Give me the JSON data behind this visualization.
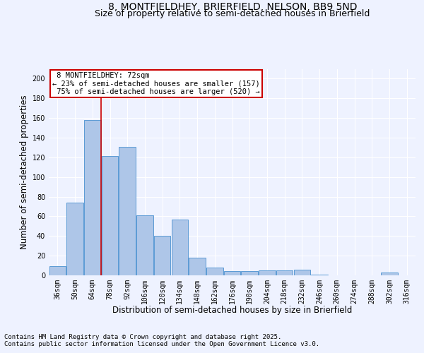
{
  "title_line1": "8, MONTFIELDHEY, BRIERFIELD, NELSON, BB9 5ND",
  "title_line2": "Size of property relative to semi-detached houses in Brierfield",
  "xlabel": "Distribution of semi-detached houses by size in Brierfield",
  "ylabel": "Number of semi-detached properties",
  "categories": [
    "36sqm",
    "50sqm",
    "64sqm",
    "78sqm",
    "92sqm",
    "106sqm",
    "120sqm",
    "134sqm",
    "148sqm",
    "162sqm",
    "176sqm",
    "190sqm",
    "204sqm",
    "218sqm",
    "232sqm",
    "246sqm",
    "260sqm",
    "274sqm",
    "288sqm",
    "302sqm",
    "316sqm"
  ],
  "values": [
    9,
    74,
    158,
    121,
    131,
    61,
    40,
    57,
    18,
    8,
    4,
    4,
    5,
    5,
    6,
    1,
    0,
    0,
    0,
    3,
    0
  ],
  "bar_color": "#aec6e8",
  "bar_edge_color": "#5b9bd5",
  "property_label": "8 MONTFIELDHEY: 72sqm",
  "pct_smaller": 23,
  "pct_smaller_count": 157,
  "pct_larger": 75,
  "pct_larger_count": 520,
  "red_line_x": 2.5,
  "annotation_box_color": "#ffffff",
  "annotation_box_edge": "#cc0000",
  "ylim": [
    0,
    210
  ],
  "yticks": [
    0,
    20,
    40,
    60,
    80,
    100,
    120,
    140,
    160,
    180,
    200
  ],
  "bg_color": "#eef2ff",
  "plot_bg_color": "#eef2ff",
  "grid_color": "#ffffff",
  "title_fontsize": 10,
  "subtitle_fontsize": 9,
  "axis_label_fontsize": 8.5,
  "tick_fontsize": 7,
  "annotation_fontsize": 7.5,
  "footer_fontsize": 6.5,
  "footer_line1": "Contains HM Land Registry data © Crown copyright and database right 2025.",
  "footer_line2": "Contains public sector information licensed under the Open Government Licence v3.0."
}
